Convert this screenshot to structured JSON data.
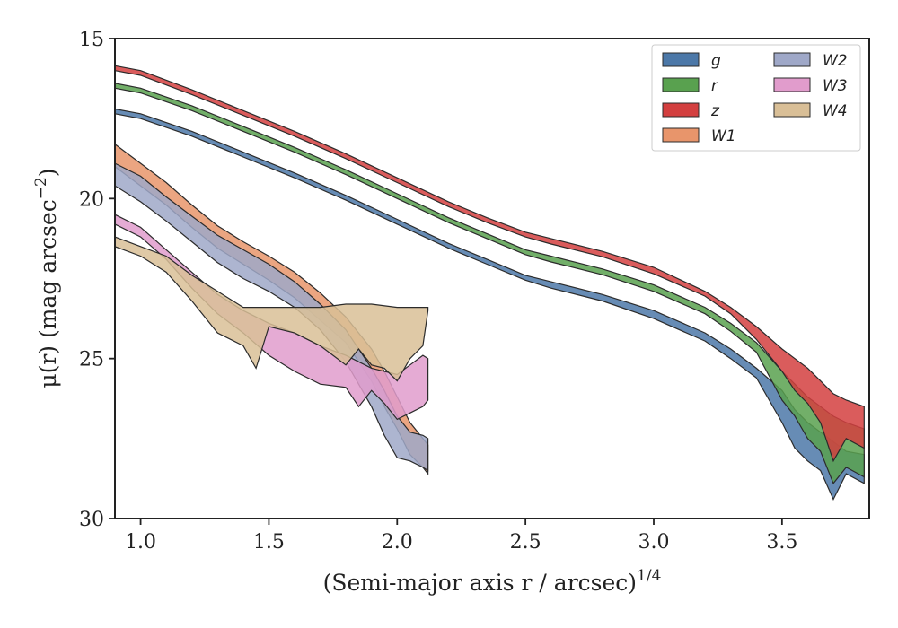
{
  "chart_data": {
    "type": "area",
    "xlabel": "(Semi-major axis r / arcsec)",
    "xlabel_sup": "1/4",
    "ylabel": "μ(r) (mag arcsec",
    "ylabel_sup": "−2",
    "ylabel_close": ")",
    "xlim": [
      0.9,
      3.84
    ],
    "ylim": [
      30,
      15
    ],
    "y_inverted": true,
    "xticks": [
      {
        "v": 1.0,
        "label": "1.0"
      },
      {
        "v": 1.5,
        "label": "1.5"
      },
      {
        "v": 2.0,
        "label": "2.0"
      },
      {
        "v": 2.5,
        "label": "2.5"
      },
      {
        "v": 3.0,
        "label": "3.0"
      },
      {
        "v": 3.5,
        "label": "3.5"
      }
    ],
    "yticks": [
      {
        "v": 15,
        "label": "15"
      },
      {
        "v": 20,
        "label": "20"
      },
      {
        "v": 25,
        "label": "25"
      },
      {
        "v": 30,
        "label": "30"
      }
    ],
    "grid": false,
    "legend_position": "top-right",
    "legend_columns": 2,
    "series": [
      {
        "name": "g",
        "color": "#4c78a8",
        "upper": [
          [
            0.9,
            17.2
          ],
          [
            1.0,
            17.35
          ],
          [
            1.2,
            17.9
          ],
          [
            1.4,
            18.55
          ],
          [
            1.6,
            19.2
          ],
          [
            1.8,
            19.9
          ],
          [
            2.0,
            20.65
          ],
          [
            2.2,
            21.4
          ],
          [
            2.35,
            21.9
          ],
          [
            2.5,
            22.4
          ],
          [
            2.6,
            22.6
          ],
          [
            2.8,
            23.0
          ],
          [
            3.0,
            23.5
          ],
          [
            3.2,
            24.2
          ],
          [
            3.3,
            24.7
          ],
          [
            3.4,
            25.3
          ],
          [
            3.5,
            26.0
          ],
          [
            3.55,
            26.6
          ],
          [
            3.6,
            27.0
          ],
          [
            3.65,
            27.3
          ],
          [
            3.7,
            27.6
          ],
          [
            3.75,
            27.9
          ],
          [
            3.82,
            28.0
          ]
        ],
        "lower": [
          [
            3.82,
            28.9
          ],
          [
            3.75,
            28.6
          ],
          [
            3.7,
            29.4
          ],
          [
            3.65,
            28.5
          ],
          [
            3.6,
            28.2
          ],
          [
            3.55,
            27.8
          ],
          [
            3.5,
            27.0
          ],
          [
            3.4,
            25.6
          ],
          [
            3.3,
            25.0
          ],
          [
            3.2,
            24.45
          ],
          [
            3.0,
            23.75
          ],
          [
            2.8,
            23.2
          ],
          [
            2.6,
            22.8
          ],
          [
            2.5,
            22.55
          ],
          [
            2.35,
            22.05
          ],
          [
            2.2,
            21.55
          ],
          [
            2.0,
            20.8
          ],
          [
            1.8,
            20.05
          ],
          [
            1.6,
            19.35
          ],
          [
            1.4,
            18.7
          ],
          [
            1.2,
            18.05
          ],
          [
            1.0,
            17.5
          ],
          [
            0.9,
            17.35
          ]
        ]
      },
      {
        "name": "r",
        "color": "#59a14f",
        "upper": [
          [
            0.9,
            16.4
          ],
          [
            1.0,
            16.55
          ],
          [
            1.2,
            17.1
          ],
          [
            1.4,
            17.75
          ],
          [
            1.6,
            18.4
          ],
          [
            1.8,
            19.1
          ],
          [
            2.0,
            19.85
          ],
          [
            2.2,
            20.6
          ],
          [
            2.35,
            21.1
          ],
          [
            2.5,
            21.6
          ],
          [
            2.6,
            21.8
          ],
          [
            2.8,
            22.2
          ],
          [
            3.0,
            22.7
          ],
          [
            3.2,
            23.4
          ],
          [
            3.3,
            23.9
          ],
          [
            3.4,
            24.5
          ],
          [
            3.5,
            25.4
          ],
          [
            3.55,
            25.8
          ],
          [
            3.6,
            26.2
          ],
          [
            3.65,
            26.5
          ],
          [
            3.7,
            26.8
          ],
          [
            3.75,
            27.0
          ],
          [
            3.82,
            27.2
          ]
        ],
        "lower": [
          [
            3.82,
            28.7
          ],
          [
            3.75,
            28.4
          ],
          [
            3.7,
            28.9
          ],
          [
            3.65,
            27.9
          ],
          [
            3.6,
            27.5
          ],
          [
            3.55,
            26.8
          ],
          [
            3.5,
            26.3
          ],
          [
            3.4,
            24.8
          ],
          [
            3.3,
            24.15
          ],
          [
            3.2,
            23.6
          ],
          [
            3.0,
            22.9
          ],
          [
            2.8,
            22.38
          ],
          [
            2.6,
            21.98
          ],
          [
            2.5,
            21.75
          ],
          [
            2.35,
            21.25
          ],
          [
            2.2,
            20.75
          ],
          [
            2.0,
            20.0
          ],
          [
            1.8,
            19.25
          ],
          [
            1.6,
            18.55
          ],
          [
            1.4,
            17.9
          ],
          [
            1.2,
            17.25
          ],
          [
            1.0,
            16.7
          ],
          [
            0.9,
            16.55
          ]
        ]
      },
      {
        "name": "z",
        "color": "#d33f3f",
        "upper": [
          [
            0.9,
            15.85
          ],
          [
            1.0,
            16.0
          ],
          [
            1.2,
            16.6
          ],
          [
            1.4,
            17.25
          ],
          [
            1.6,
            17.9
          ],
          [
            1.8,
            18.6
          ],
          [
            2.0,
            19.35
          ],
          [
            2.2,
            20.1
          ],
          [
            2.35,
            20.6
          ],
          [
            2.5,
            21.05
          ],
          [
            2.6,
            21.25
          ],
          [
            2.8,
            21.65
          ],
          [
            3.0,
            22.15
          ],
          [
            3.2,
            22.9
          ],
          [
            3.3,
            23.4
          ],
          [
            3.4,
            24.0
          ],
          [
            3.5,
            24.7
          ],
          [
            3.55,
            25.0
          ],
          [
            3.6,
            25.3
          ],
          [
            3.65,
            25.7
          ],
          [
            3.7,
            26.1
          ],
          [
            3.75,
            26.3
          ],
          [
            3.82,
            26.5
          ]
        ],
        "lower": [
          [
            3.82,
            27.8
          ],
          [
            3.75,
            27.5
          ],
          [
            3.7,
            28.2
          ],
          [
            3.65,
            27.0
          ],
          [
            3.6,
            26.4
          ],
          [
            3.55,
            26.0
          ],
          [
            3.5,
            25.4
          ],
          [
            3.4,
            24.4
          ],
          [
            3.3,
            23.6
          ],
          [
            3.2,
            23.05
          ],
          [
            3.0,
            22.35
          ],
          [
            2.8,
            21.82
          ],
          [
            2.6,
            21.42
          ],
          [
            2.5,
            21.2
          ],
          [
            2.35,
            20.75
          ],
          [
            2.2,
            20.25
          ],
          [
            2.0,
            19.5
          ],
          [
            1.8,
            18.75
          ],
          [
            1.6,
            18.05
          ],
          [
            1.4,
            17.4
          ],
          [
            1.2,
            16.75
          ],
          [
            1.0,
            16.15
          ],
          [
            0.9,
            16.0
          ]
        ]
      },
      {
        "name": "W1",
        "color": "#e8956b",
        "upper": [
          [
            0.9,
            18.3
          ],
          [
            1.0,
            18.9
          ],
          [
            1.1,
            19.5
          ],
          [
            1.2,
            20.2
          ],
          [
            1.3,
            20.85
          ],
          [
            1.4,
            21.35
          ],
          [
            1.5,
            21.8
          ],
          [
            1.6,
            22.3
          ],
          [
            1.7,
            22.95
          ],
          [
            1.8,
            23.7
          ],
          [
            1.9,
            24.7
          ],
          [
            1.95,
            25.4
          ],
          [
            2.0,
            26.2
          ],
          [
            2.05,
            27.0
          ],
          [
            2.1,
            27.5
          ],
          [
            2.12,
            27.7
          ]
        ],
        "lower": [
          [
            2.12,
            28.6
          ],
          [
            2.1,
            28.4
          ],
          [
            2.05,
            28.0
          ],
          [
            2.0,
            27.2
          ],
          [
            1.95,
            26.5
          ],
          [
            1.9,
            25.7
          ],
          [
            1.8,
            24.5
          ],
          [
            1.7,
            23.8
          ],
          [
            1.6,
            23.1
          ],
          [
            1.5,
            22.55
          ],
          [
            1.4,
            22.05
          ],
          [
            1.3,
            21.55
          ],
          [
            1.2,
            20.9
          ],
          [
            1.1,
            20.2
          ],
          [
            1.0,
            19.6
          ],
          [
            0.9,
            19.0
          ]
        ]
      },
      {
        "name": "W2",
        "color": "#9fa8c8",
        "upper": [
          [
            0.9,
            18.9
          ],
          [
            1.0,
            19.3
          ],
          [
            1.1,
            19.95
          ],
          [
            1.2,
            20.55
          ],
          [
            1.3,
            21.15
          ],
          [
            1.4,
            21.6
          ],
          [
            1.5,
            22.05
          ],
          [
            1.6,
            22.6
          ],
          [
            1.7,
            23.3
          ],
          [
            1.8,
            24.1
          ],
          [
            1.9,
            25.3
          ],
          [
            1.95,
            26.0
          ],
          [
            2.0,
            26.8
          ],
          [
            2.05,
            27.3
          ],
          [
            2.1,
            27.4
          ],
          [
            2.12,
            27.5
          ]
        ],
        "lower": [
          [
            2.12,
            28.5
          ],
          [
            2.1,
            28.4
          ],
          [
            2.05,
            28.2
          ],
          [
            2.0,
            28.1
          ],
          [
            1.95,
            27.4
          ],
          [
            1.9,
            26.5
          ],
          [
            1.8,
            25.1
          ],
          [
            1.7,
            24.1
          ],
          [
            1.6,
            23.4
          ],
          [
            1.5,
            22.9
          ],
          [
            1.4,
            22.5
          ],
          [
            1.3,
            22.0
          ],
          [
            1.2,
            21.35
          ],
          [
            1.1,
            20.7
          ],
          [
            1.0,
            20.1
          ],
          [
            0.9,
            19.6
          ]
        ]
      },
      {
        "name": "W3",
        "color": "#e19ccc",
        "upper": [
          [
            0.9,
            20.5
          ],
          [
            1.0,
            20.9
          ],
          [
            1.1,
            21.6
          ],
          [
            1.2,
            22.3
          ],
          [
            1.3,
            23.0
          ],
          [
            1.4,
            23.5
          ],
          [
            1.5,
            23.9
          ],
          [
            1.6,
            24.2
          ],
          [
            1.7,
            24.6
          ],
          [
            1.8,
            24.9
          ],
          [
            1.9,
            25.3
          ],
          [
            2.0,
            25.5
          ],
          [
            2.05,
            25.2
          ],
          [
            2.1,
            24.9
          ],
          [
            2.12,
            25.0
          ]
        ],
        "lower": [
          [
            2.12,
            26.3
          ],
          [
            2.1,
            26.5
          ],
          [
            2.05,
            26.7
          ],
          [
            2.0,
            26.9
          ],
          [
            1.95,
            26.4
          ],
          [
            1.9,
            26.0
          ],
          [
            1.85,
            26.5
          ],
          [
            1.8,
            25.9
          ],
          [
            1.7,
            25.8
          ],
          [
            1.6,
            25.4
          ],
          [
            1.5,
            24.9
          ],
          [
            1.4,
            24.2
          ],
          [
            1.3,
            23.6
          ],
          [
            1.2,
            22.8
          ],
          [
            1.1,
            21.9
          ],
          [
            1.0,
            21.2
          ],
          [
            0.9,
            20.8
          ]
        ]
      },
      {
        "name": "W4",
        "color": "#d9bf97",
        "upper": [
          [
            0.9,
            21.2
          ],
          [
            1.0,
            21.5
          ],
          [
            1.1,
            21.8
          ],
          [
            1.2,
            22.4
          ],
          [
            1.3,
            22.9
          ],
          [
            1.4,
            23.4
          ],
          [
            1.5,
            23.4
          ],
          [
            1.6,
            23.4
          ],
          [
            1.7,
            23.4
          ],
          [
            1.8,
            23.3
          ],
          [
            1.9,
            23.3
          ],
          [
            2.0,
            23.4
          ],
          [
            2.05,
            23.4
          ],
          [
            2.1,
            23.4
          ],
          [
            2.12,
            23.4
          ]
        ],
        "lower": [
          [
            2.12,
            23.5
          ],
          [
            2.1,
            24.6
          ],
          [
            2.05,
            25.0
          ],
          [
            2.0,
            25.7
          ],
          [
            1.95,
            25.3
          ],
          [
            1.9,
            25.2
          ],
          [
            1.85,
            24.7
          ],
          [
            1.8,
            25.2
          ],
          [
            1.7,
            24.6
          ],
          [
            1.6,
            24.2
          ],
          [
            1.5,
            24.0
          ],
          [
            1.45,
            25.3
          ],
          [
            1.4,
            24.6
          ],
          [
            1.3,
            24.2
          ],
          [
            1.2,
            23.2
          ],
          [
            1.1,
            22.3
          ],
          [
            1.0,
            21.8
          ],
          [
            0.9,
            21.5
          ]
        ]
      }
    ]
  }
}
